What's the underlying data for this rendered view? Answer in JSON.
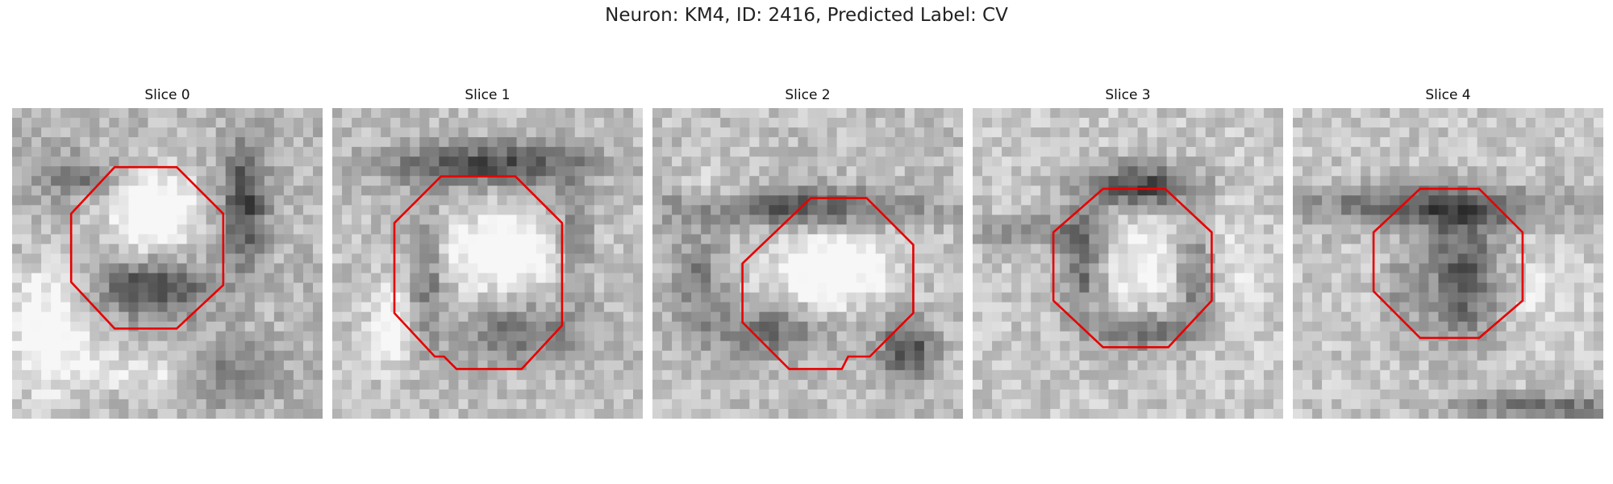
{
  "figure": {
    "title": "Neuron: KM4, ID: 2416, Predicted Label: CV",
    "outline_color": "#e60000"
  },
  "slices": [
    {
      "title": "Slice 0",
      "outline_shape": "octagon"
    },
    {
      "title": "Slice 1",
      "outline_shape": "octagon"
    },
    {
      "title": "Slice 2",
      "outline_shape": "octagon"
    },
    {
      "title": "Slice 3",
      "outline_shape": "octagon"
    },
    {
      "title": "Slice 4",
      "outline_shape": "octagon"
    }
  ]
}
